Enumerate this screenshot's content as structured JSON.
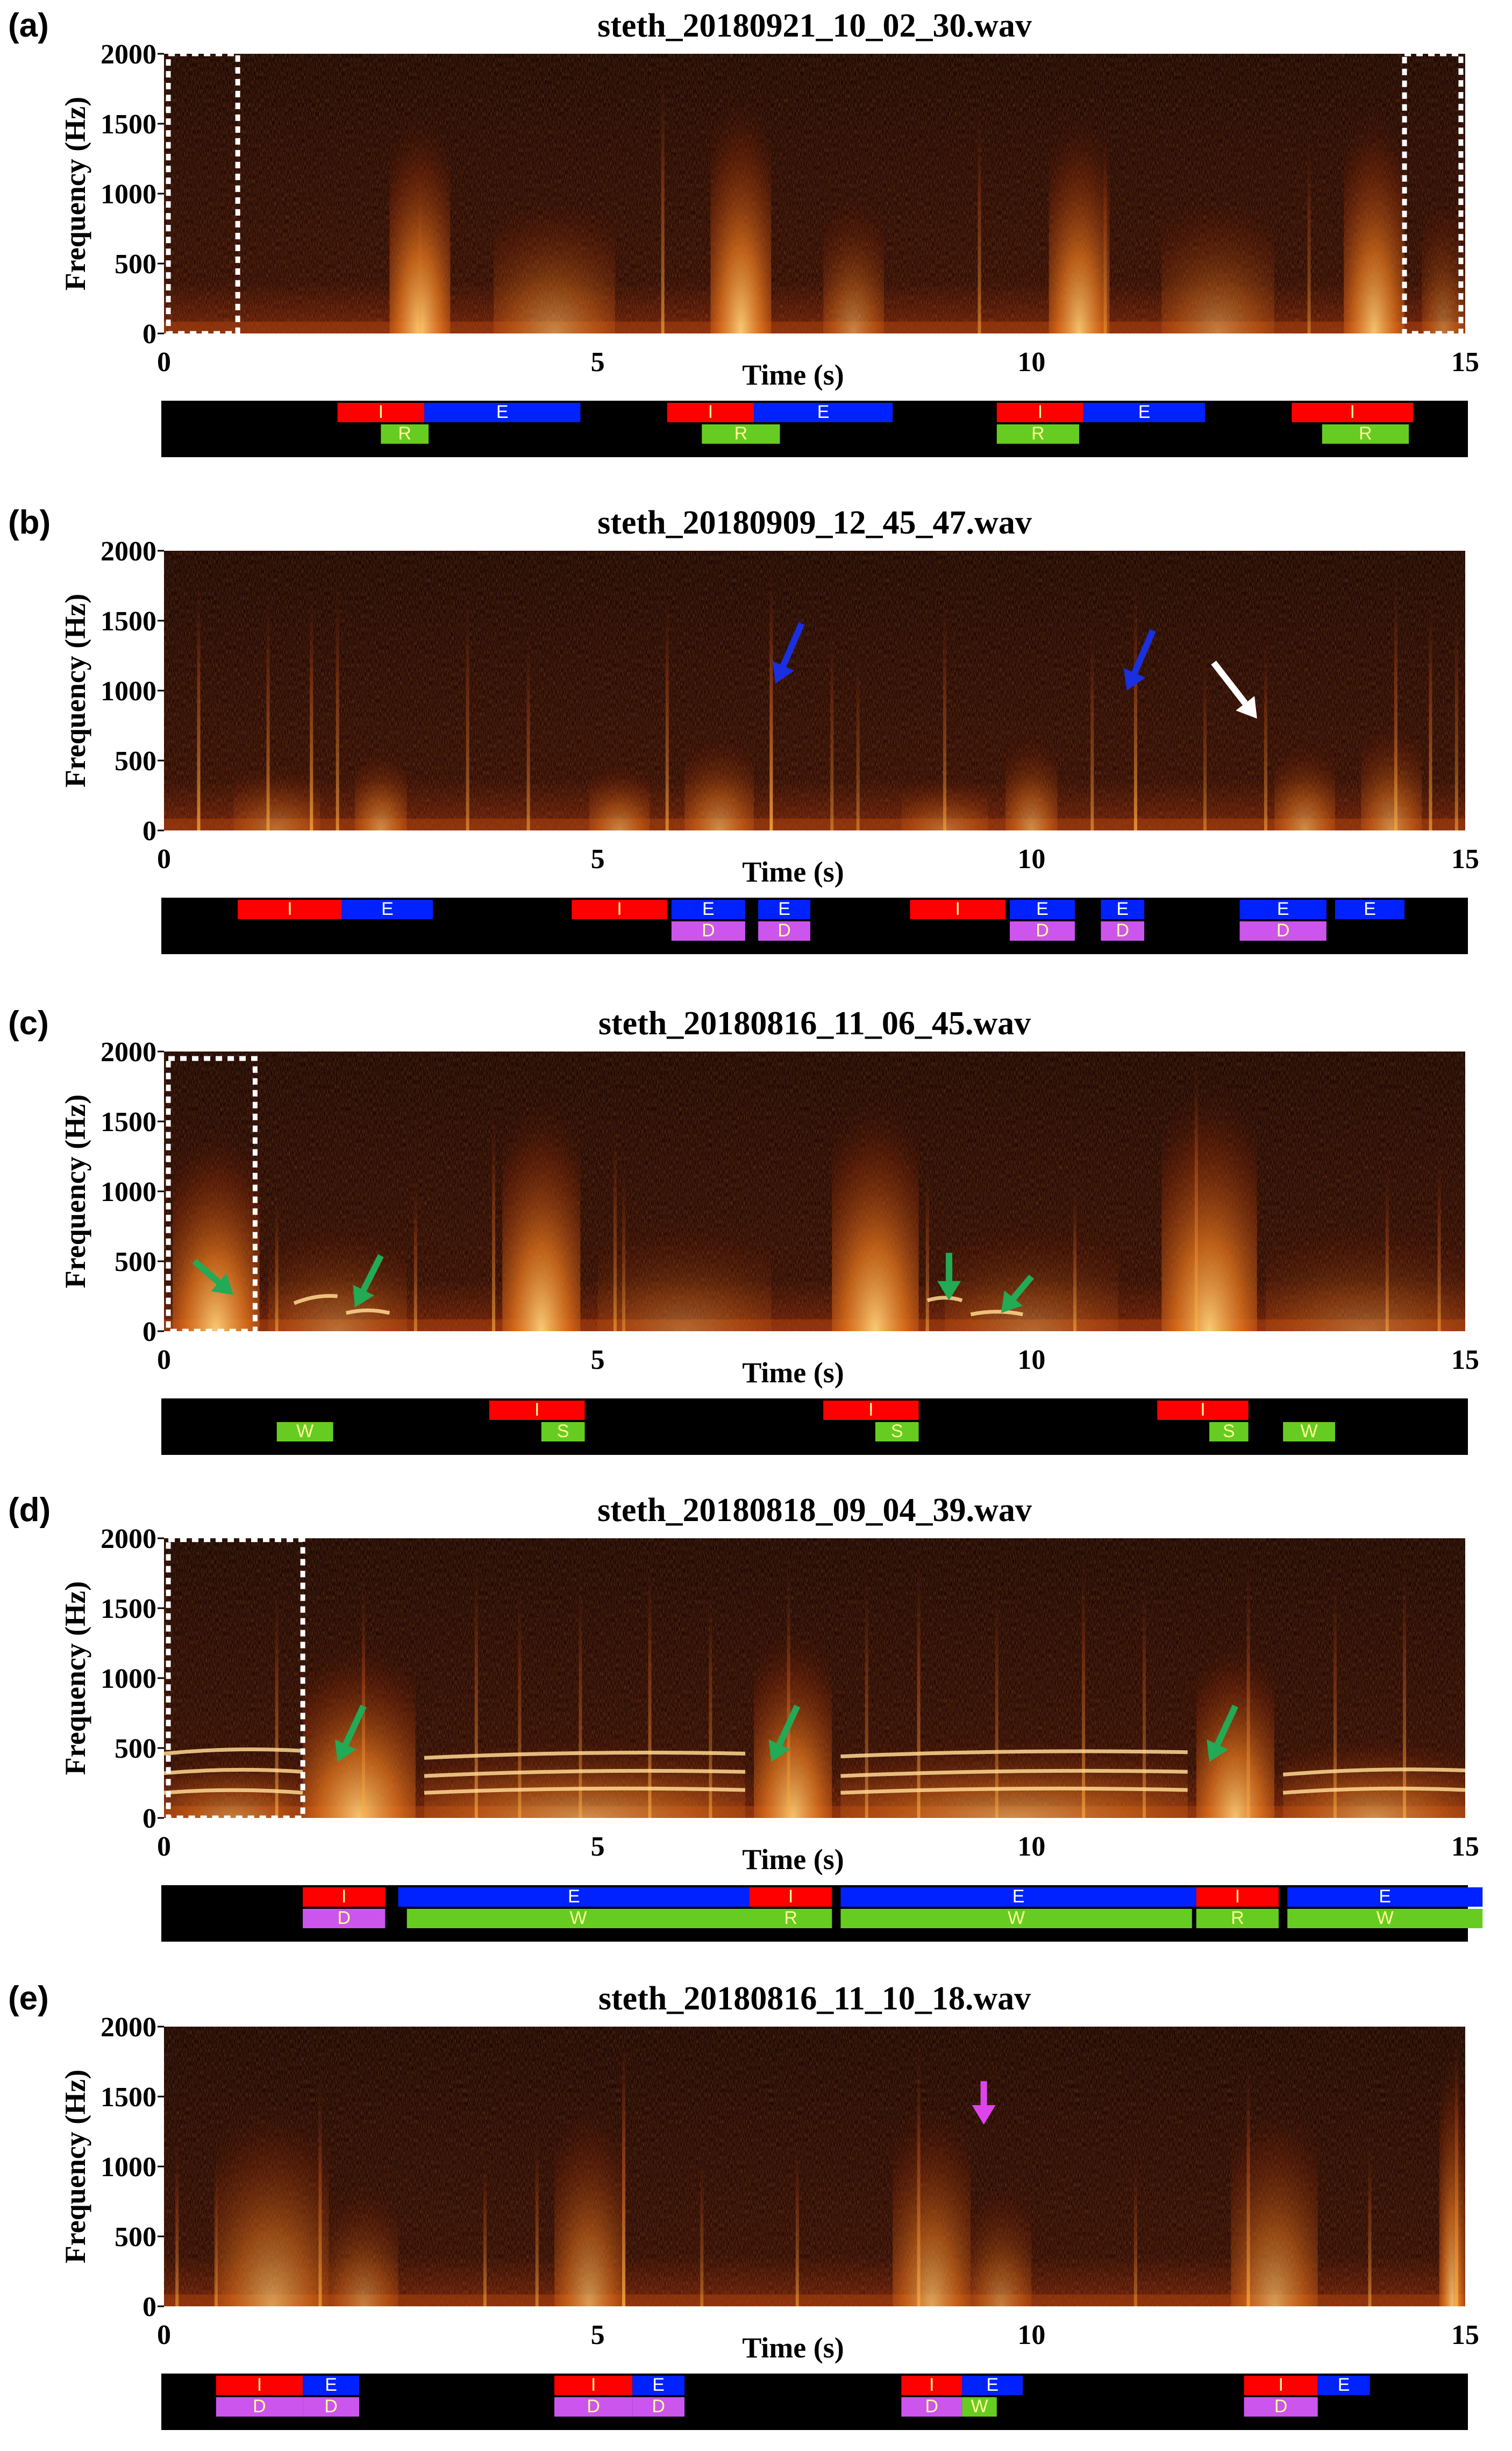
{
  "colors": {
    "inhale": "#ff0000",
    "exhale": "#0022ff",
    "green": "#66cc22",
    "discontinuous": "#cc55ee",
    "bar_bg": "#000000",
    "seg_text_light": "#ffff99",
    "arrow_blue": "#1a2fe0",
    "arrow_white": "#ffffff",
    "arrow_green": "#22aa55",
    "arrow_magenta": "#dd44ee"
  },
  "x_ticks": [
    "0",
    "5",
    "10",
    "15"
  ],
  "y_ticks": [
    "0",
    "500",
    "1000",
    "1500",
    "2000"
  ],
  "x_label": "Time (s)",
  "y_label": "Frequency (Hz)",
  "panels": [
    {
      "label": "(a)",
      "title": "steth_20180921_10_02_30.wav",
      "spectrogram": {
        "blobs": [
          [
            2.6,
            3.3,
            1600,
            1.0
          ],
          [
            3.8,
            5.2,
            1000,
            0.55
          ],
          [
            6.3,
            7.0,
            1750,
            1.0
          ],
          [
            7.6,
            8.3,
            1000,
            0.55
          ],
          [
            10.2,
            10.9,
            1600,
            0.95
          ],
          [
            11.5,
            12.8,
            1000,
            0.5
          ],
          [
            13.6,
            14.3,
            1650,
            0.95
          ],
          [
            14.5,
            15.0,
            1000,
            0.45
          ]
        ],
        "streaks": [
          [
            2.95,
            1200,
            0.6
          ],
          [
            5.75,
            1900,
            0.7
          ],
          [
            9.4,
            1600,
            0.6
          ],
          [
            10.85,
            1500,
            0.5
          ],
          [
            13.2,
            1400,
            0.5
          ]
        ],
        "harmonics": []
      },
      "dashed_boxes": [
        [
          0.05,
          0.85,
          0,
          2000
        ],
        [
          14.3,
          14.95,
          0,
          2000
        ]
      ],
      "arrows": [],
      "bar_rows": 2,
      "segments": [
        [
          2.0,
          3.0,
          0,
          "inhale",
          "I"
        ],
        [
          3.0,
          4.8,
          0,
          "exhale",
          "E"
        ],
        [
          2.5,
          3.05,
          1,
          "green",
          "R"
        ],
        [
          5.8,
          6.8,
          0,
          "inhale",
          "I"
        ],
        [
          6.8,
          8.4,
          0,
          "exhale",
          "E"
        ],
        [
          6.2,
          7.1,
          1,
          "green",
          "R"
        ],
        [
          9.6,
          10.6,
          0,
          "inhale",
          "I"
        ],
        [
          10.6,
          12.0,
          0,
          "exhale",
          "E"
        ],
        [
          9.6,
          10.55,
          1,
          "green",
          "R"
        ],
        [
          13.0,
          14.4,
          0,
          "inhale",
          "I"
        ],
        [
          13.35,
          14.35,
          1,
          "green",
          "R"
        ]
      ]
    },
    {
      "label": "(b)",
      "title": "steth_20180909_12_45_47.wav",
      "spectrogram": {
        "blobs": [
          [
            2.2,
            2.8,
            600,
            0.6
          ],
          [
            4.9,
            5.6,
            500,
            0.55
          ],
          [
            6.0,
            6.8,
            700,
            0.6
          ],
          [
            9.7,
            10.3,
            700,
            0.6
          ],
          [
            12.8,
            13.5,
            650,
            0.6
          ],
          [
            13.8,
            14.5,
            800,
            0.6
          ],
          [
            8.5,
            9.5,
            400,
            0.4
          ],
          [
            0.8,
            1.8,
            500,
            0.4
          ]
        ],
        "streaks": [
          [
            0.4,
            1800,
            0.8
          ],
          [
            1.2,
            1700,
            0.7
          ],
          [
            1.7,
            1750,
            0.8
          ],
          [
            2.0,
            1800,
            0.7
          ],
          [
            3.5,
            1700,
            0.6
          ],
          [
            4.2,
            1400,
            0.6
          ],
          [
            5.8,
            1700,
            0.7
          ],
          [
            7.0,
            1900,
            0.9
          ],
          [
            7.7,
            1500,
            0.5
          ],
          [
            8.0,
            1300,
            0.5
          ],
          [
            9.0,
            1700,
            0.6
          ],
          [
            10.7,
            1500,
            0.6
          ],
          [
            11.2,
            1800,
            0.8
          ],
          [
            12.0,
            1300,
            0.5
          ],
          [
            12.7,
            1400,
            0.6
          ],
          [
            14.2,
            1900,
            0.7
          ],
          [
            14.6,
            1700,
            0.7
          ],
          [
            14.9,
            1600,
            0.6
          ]
        ],
        "harmonics": []
      },
      "dashed_boxes": [],
      "arrows": [
        [
          7.35,
          1480,
          7.05,
          1050,
          "arrow_blue"
        ],
        [
          11.4,
          1430,
          11.1,
          1000,
          "arrow_blue"
        ],
        [
          12.1,
          1200,
          12.6,
          800,
          "arrow_white"
        ]
      ],
      "bar_rows": 2,
      "segments": [
        [
          0.85,
          2.05,
          0,
          "inhale",
          "I"
        ],
        [
          2.05,
          3.1,
          0,
          "exhale",
          "E"
        ],
        [
          4.7,
          5.8,
          0,
          "inhale",
          "I"
        ],
        [
          5.85,
          6.7,
          0,
          "exhale",
          "E"
        ],
        [
          6.85,
          7.45,
          0,
          "exhale",
          "E"
        ],
        [
          8.6,
          9.7,
          0,
          "inhale",
          "I"
        ],
        [
          9.75,
          10.5,
          0,
          "exhale",
          "E"
        ],
        [
          10.8,
          11.3,
          0,
          "exhale",
          "E"
        ],
        [
          12.4,
          13.4,
          0,
          "exhale",
          "E"
        ],
        [
          13.5,
          14.3,
          0,
          "exhale",
          "E"
        ],
        [
          5.85,
          6.7,
          1,
          "discontinuous",
          "D"
        ],
        [
          6.85,
          7.45,
          1,
          "discontinuous",
          "D"
        ],
        [
          9.75,
          10.5,
          1,
          "discontinuous",
          "D"
        ],
        [
          10.8,
          11.3,
          1,
          "discontinuous",
          "D"
        ],
        [
          12.4,
          13.4,
          1,
          "discontinuous",
          "D"
        ]
      ]
    },
    {
      "label": "(c)",
      "title": "steth_20180816_11_06_45.wav",
      "spectrogram": {
        "blobs": [
          [
            0.1,
            1.1,
            1500,
            1.0
          ],
          [
            3.9,
            4.8,
            1700,
            1.0
          ],
          [
            7.7,
            8.7,
            1700,
            1.0
          ],
          [
            11.5,
            12.6,
            1800,
            1.0
          ],
          [
            1.2,
            2.8,
            800,
            0.4
          ],
          [
            5.0,
            7.0,
            800,
            0.35
          ],
          [
            9.0,
            11.0,
            800,
            0.35
          ],
          [
            12.7,
            15.0,
            800,
            0.35
          ]
        ],
        "streaks": [
          [
            1.3,
            1000,
            0.6
          ],
          [
            2.9,
            1100,
            0.6
          ],
          [
            3.8,
            1600,
            0.7
          ],
          [
            5.2,
            1500,
            0.6
          ],
          [
            5.3,
            1200,
            0.5
          ],
          [
            8.8,
            1200,
            0.6
          ],
          [
            10.5,
            1100,
            0.6
          ],
          [
            11.9,
            2000,
            0.9
          ],
          [
            14.1,
            1200,
            0.6
          ],
          [
            14.7,
            1300,
            0.6
          ]
        ],
        "harmonics": [
          [
            1.5,
            2.0,
            200,
            250
          ],
          [
            2.1,
            2.6,
            130,
            130
          ],
          [
            9.3,
            9.9,
            120,
            120
          ],
          [
            8.8,
            9.2,
            220,
            220
          ]
        ]
      },
      "dashed_boxes": [
        [
          0.05,
          1.05,
          0,
          1950
        ]
      ],
      "arrows": [
        [
          0.35,
          500,
          0.8,
          260,
          "arrow_green"
        ],
        [
          2.5,
          540,
          2.2,
          170,
          "arrow_green"
        ],
        [
          9.05,
          560,
          9.05,
          220,
          "arrow_green"
        ],
        [
          10.0,
          390,
          9.65,
          130,
          "arrow_green"
        ]
      ],
      "bar_rows": 2,
      "segments": [
        [
          3.75,
          4.85,
          0,
          "inhale",
          "I"
        ],
        [
          7.6,
          8.7,
          0,
          "inhale",
          "I"
        ],
        [
          11.45,
          12.5,
          0,
          "inhale",
          "I"
        ],
        [
          1.3,
          1.95,
          1,
          "green",
          "W"
        ],
        [
          4.35,
          4.85,
          1,
          "green",
          "S"
        ],
        [
          8.2,
          8.7,
          1,
          "green",
          "S"
        ],
        [
          12.05,
          12.5,
          1,
          "green",
          "S"
        ],
        [
          12.9,
          13.5,
          1,
          "green",
          "W"
        ]
      ]
    },
    {
      "label": "(d)",
      "title": "steth_20180818_09_04_39.wav",
      "spectrogram": {
        "blobs": [
          [
            1.6,
            2.9,
            1300,
            0.95
          ],
          [
            6.8,
            7.7,
            1400,
            0.95
          ],
          [
            11.9,
            12.8,
            1300,
            0.95
          ],
          [
            3.0,
            6.7,
            600,
            0.6
          ],
          [
            7.8,
            11.8,
            600,
            0.6
          ],
          [
            12.9,
            15.0,
            600,
            0.6
          ],
          [
            0.0,
            1.6,
            500,
            0.5
          ]
        ],
        "streaks": [
          [
            1.3,
            1700,
            0.7
          ],
          [
            2.3,
            1800,
            0.7
          ],
          [
            3.6,
            1900,
            0.7
          ],
          [
            4.1,
            1700,
            0.6
          ],
          [
            4.8,
            1800,
            0.6
          ],
          [
            5.6,
            1900,
            0.7
          ],
          [
            6.3,
            1700,
            0.6
          ],
          [
            7.2,
            1900,
            0.7
          ],
          [
            8.1,
            1800,
            0.6
          ],
          [
            8.7,
            1900,
            0.7
          ],
          [
            9.6,
            1700,
            0.6
          ],
          [
            10.6,
            1900,
            0.7
          ],
          [
            11.3,
            1800,
            0.6
          ],
          [
            12.5,
            1900,
            0.7
          ],
          [
            13.5,
            1800,
            0.6
          ],
          [
            14.3,
            1900,
            0.7
          ]
        ],
        "harmonics": [
          [
            0.0,
            1.6,
            180,
            180
          ],
          [
            0.0,
            1.6,
            320,
            330
          ],
          [
            0.0,
            1.6,
            460,
            480
          ],
          [
            3.0,
            6.7,
            180,
            200
          ],
          [
            3.0,
            6.7,
            300,
            330
          ],
          [
            3.0,
            6.7,
            430,
            460
          ],
          [
            7.8,
            11.8,
            180,
            200
          ],
          [
            7.8,
            11.8,
            300,
            330
          ],
          [
            7.8,
            11.8,
            440,
            470
          ],
          [
            12.9,
            15.0,
            180,
            200
          ],
          [
            12.9,
            15.0,
            310,
            340
          ]
        ]
      },
      "dashed_boxes": [
        [
          0.05,
          1.6,
          0,
          1990
        ]
      ],
      "arrows": [
        [
          2.3,
          800,
          2.0,
          400,
          "arrow_green"
        ],
        [
          7.3,
          800,
          7.0,
          400,
          "arrow_green"
        ],
        [
          12.35,
          800,
          12.05,
          400,
          "arrow_green"
        ]
      ],
      "bar_rows": 2,
      "segments": [
        [
          1.6,
          2.55,
          0,
          "inhale",
          "I"
        ],
        [
          2.7,
          6.75,
          0,
          "exhale",
          "E"
        ],
        [
          6.75,
          7.7,
          0,
          "inhale",
          "I"
        ],
        [
          7.8,
          11.9,
          0,
          "exhale",
          "E"
        ],
        [
          11.9,
          12.85,
          0,
          "inhale",
          "I"
        ],
        [
          12.95,
          15.2,
          0,
          "exhale",
          "E"
        ],
        [
          1.6,
          2.55,
          1,
          "discontinuous",
          "D"
        ],
        [
          2.8,
          6.75,
          1,
          "green",
          "W"
        ],
        [
          6.75,
          7.7,
          1,
          "green",
          "R"
        ],
        [
          7.8,
          11.85,
          1,
          "green",
          "W"
        ],
        [
          11.9,
          12.85,
          1,
          "green",
          "R"
        ],
        [
          12.95,
          15.2,
          1,
          "green",
          "W"
        ]
      ]
    },
    {
      "label": "(e)",
      "title": "steth_20180816_11_10_18.wav",
      "spectrogram": {
        "blobs": [
          [
            0.6,
            1.9,
            1500,
            0.7
          ],
          [
            1.9,
            2.7,
            900,
            0.5
          ],
          [
            4.5,
            5.3,
            1500,
            0.7
          ],
          [
            8.4,
            9.3,
            1500,
            0.75
          ],
          [
            9.3,
            10.0,
            900,
            0.5
          ],
          [
            12.3,
            13.3,
            1500,
            0.7
          ],
          [
            14.7,
            15.0,
            1900,
            0.9
          ]
        ],
        "streaks": [
          [
            0.15,
            1200,
            0.6
          ],
          [
            0.6,
            1100,
            0.6
          ],
          [
            1.8,
            1700,
            0.7
          ],
          [
            3.7,
            1100,
            0.6
          ],
          [
            4.3,
            1300,
            0.6
          ],
          [
            5.3,
            2000,
            0.9
          ],
          [
            6.2,
            1100,
            0.5
          ],
          [
            7.3,
            1200,
            0.6
          ],
          [
            8.7,
            1900,
            0.8
          ],
          [
            11.2,
            1100,
            0.5
          ],
          [
            12.5,
            1800,
            0.8
          ],
          [
            13.9,
            1200,
            0.6
          ],
          [
            14.9,
            2000,
            0.9
          ]
        ],
        "harmonics": []
      },
      "dashed_boxes": [],
      "arrows": [
        [
          9.45,
          1610,
          9.45,
          1300,
          "arrow_magenta"
        ]
      ],
      "bar_rows": 2,
      "segments": [
        [
          0.6,
          1.6,
          0,
          "inhale",
          "I"
        ],
        [
          1.6,
          2.25,
          0,
          "exhale",
          "E"
        ],
        [
          4.5,
          5.4,
          0,
          "inhale",
          "I"
        ],
        [
          5.4,
          6.0,
          0,
          "exhale",
          "E"
        ],
        [
          8.5,
          9.2,
          0,
          "inhale",
          "I"
        ],
        [
          9.2,
          9.9,
          0,
          "exhale",
          "E"
        ],
        [
          12.45,
          13.3,
          0,
          "inhale",
          "I"
        ],
        [
          13.3,
          13.9,
          0,
          "exhale",
          "E"
        ],
        [
          0.6,
          1.6,
          1,
          "discontinuous",
          "D"
        ],
        [
          1.6,
          2.25,
          1,
          "discontinuous",
          "D"
        ],
        [
          4.5,
          5.4,
          1,
          "discontinuous",
          "D"
        ],
        [
          5.4,
          6.0,
          1,
          "discontinuous",
          "D"
        ],
        [
          8.5,
          9.2,
          1,
          "discontinuous",
          "D"
        ],
        [
          9.2,
          9.6,
          1,
          "green",
          "W"
        ],
        [
          12.45,
          13.3,
          1,
          "discontinuous",
          "D"
        ]
      ]
    }
  ]
}
